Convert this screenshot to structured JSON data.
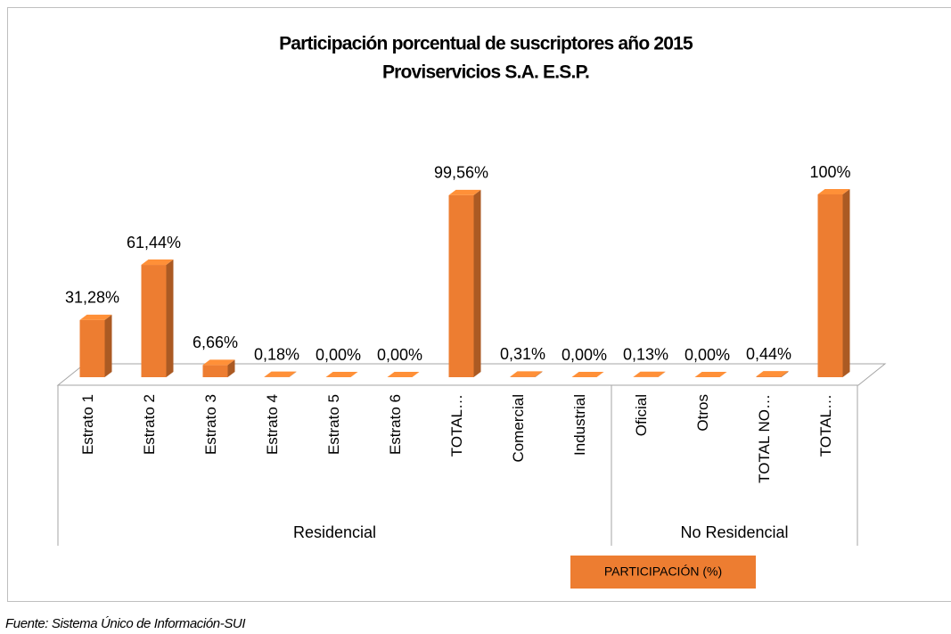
{
  "chart_data": {
    "type": "bar3d",
    "title": "Participación porcentual de suscriptores año 2015",
    "subtitle": "Proviservicios S.A. E.S.P.",
    "groups": [
      {
        "name": "Residencial",
        "categories": [
          "Estrato 1",
          "Estrato 2",
          "Estrato 3",
          "Estrato 4",
          "Estrato 5",
          "Estrato 6",
          "TOTAL…",
          "Comercial",
          "Industrial"
        ]
      },
      {
        "name": "No Residencial",
        "categories": [
          "Oficial",
          "Otros",
          "TOTAL NO…",
          "TOTAL…"
        ]
      }
    ],
    "series": [
      {
        "name": "PARTICIPACIÓN (%)",
        "color": "#ed7d31",
        "values": [
          31.28,
          61.44,
          6.66,
          0.18,
          0,
          0,
          99.56,
          0.31,
          0,
          0.13,
          0,
          0.44,
          100
        ],
        "value_labels": [
          "31,28%",
          "61,44%",
          "6,66%",
          "0,18%",
          "0,00%",
          "0,00%",
          "99,56%",
          "0,31%",
          "0,00%",
          "0,13%",
          "0,00%",
          "0,44%",
          "100%"
        ]
      }
    ],
    "source": "Fuente: Sistema Único de Información-SUI"
  }
}
